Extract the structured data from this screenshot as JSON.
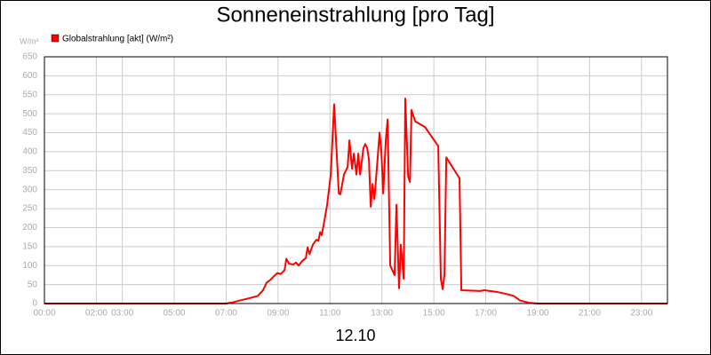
{
  "chart_data": {
    "type": "line",
    "title": "Sonneneinstrahlung [pro Tag]",
    "y_unit": "W/m²",
    "x_label": "12.10",
    "series": [
      {
        "name": "Globalstrahlung [akt] (W/m²)",
        "color": "#ff0000",
        "x": [
          0,
          7.0,
          7.26,
          7.53,
          7.95,
          8.22,
          8.42,
          8.56,
          8.7,
          8.84,
          8.97,
          9.11,
          9.25,
          9.32,
          9.42,
          9.59,
          9.69,
          9.79,
          9.93,
          10.07,
          10.14,
          10.21,
          10.34,
          10.48,
          10.55,
          10.62,
          10.68,
          10.75,
          10.89,
          11.03,
          11.16,
          11.34,
          11.4,
          11.54,
          11.68,
          11.75,
          11.85,
          11.92,
          12.02,
          12.09,
          12.16,
          12.29,
          12.36,
          12.43,
          12.5,
          12.57,
          12.64,
          12.71,
          12.81,
          12.91,
          12.98,
          13.05,
          13.15,
          13.22,
          13.32,
          13.49,
          13.56,
          13.66,
          13.73,
          13.84,
          13.9,
          14.01,
          14.08,
          14.14,
          14.28,
          14.66,
          15.17,
          15.27,
          15.34,
          15.41,
          15.48,
          15.99,
          16.06,
          16.78,
          16.95,
          17.47,
          17.81,
          18.08,
          18.32,
          18.66,
          19.0,
          24
        ],
        "values": [
          0,
          0,
          3,
          8,
          15,
          20,
          35,
          55,
          62,
          72,
          80,
          78,
          88,
          118,
          105,
          103,
          108,
          100,
          112,
          120,
          148,
          130,
          155,
          168,
          165,
          188,
          180,
          205,
          260,
          340,
          525,
          290,
          288,
          340,
          360,
          430,
          355,
          395,
          340,
          395,
          340,
          410,
          420,
          410,
          380,
          255,
          315,
          275,
          360,
          450,
          400,
          290,
          430,
          485,
          100,
          75,
          260,
          40,
          155,
          65,
          540,
          335,
          320,
          510,
          480,
          465,
          415,
          65,
          38,
          75,
          385,
          330,
          35,
          33,
          35,
          30,
          25,
          20,
          8,
          2,
          0,
          0
        ]
      }
    ],
    "xlim": [
      0,
      24
    ],
    "xticks": [
      {
        "value": 0,
        "label": "00:00"
      },
      {
        "value": 2,
        "label": "02:00"
      },
      {
        "value": 3,
        "label": "03:00"
      },
      {
        "value": 5,
        "label": "05:00"
      },
      {
        "value": 7,
        "label": "07:00"
      },
      {
        "value": 9,
        "label": "09:00"
      },
      {
        "value": 11,
        "label": "11:00"
      },
      {
        "value": 13,
        "label": "13:00"
      },
      {
        "value": 15,
        "label": "15:00"
      },
      {
        "value": 17,
        "label": "17:00"
      },
      {
        "value": 19,
        "label": "19:00"
      },
      {
        "value": 21,
        "label": "21:00"
      },
      {
        "value": 23,
        "label": "23:00"
      }
    ],
    "ylim": [
      0,
      650
    ],
    "yticks": [
      0,
      50,
      100,
      150,
      200,
      250,
      300,
      350,
      400,
      450,
      500,
      550,
      600,
      650
    ],
    "grid": true
  }
}
